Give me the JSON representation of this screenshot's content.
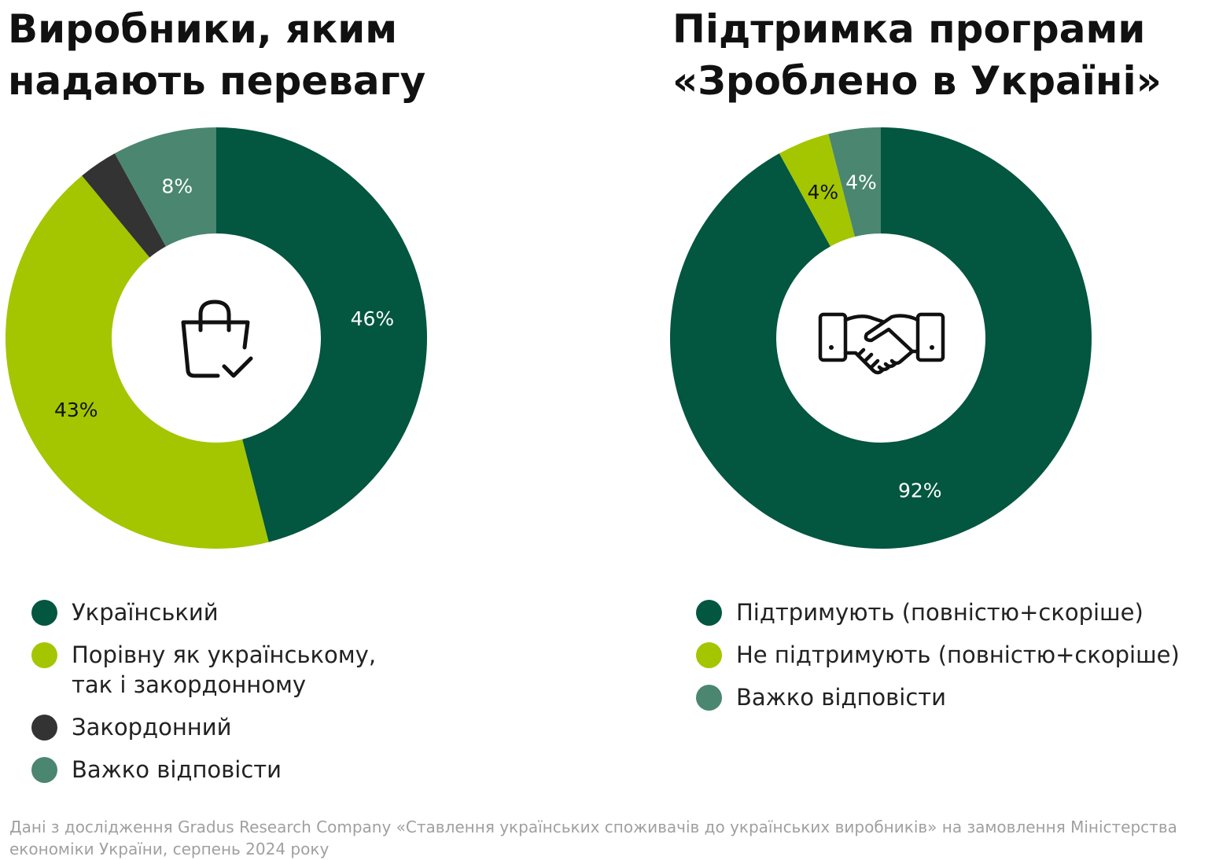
{
  "chart_data": [
    {
      "type": "pie",
      "subtype": "donut",
      "title": "Виробники, яким надають перевагу",
      "icon": "shopping-bag-check-icon",
      "categories": [
        "Український",
        "Порівну як українському, так і закордонному",
        "Закордонний",
        "Важко відповісти"
      ],
      "values": [
        46,
        43,
        3,
        8
      ],
      "labels": [
        "46%",
        "43%",
        null,
        "8%"
      ],
      "colors": [
        "#03563f",
        "#a3c600",
        "#333333",
        "#4a8670"
      ],
      "label_colors": [
        "#ffffff",
        "#111111",
        "#ffffff",
        "#ffffff"
      ],
      "legend_placement": "bottom"
    },
    {
      "type": "pie",
      "subtype": "donut",
      "title": "Підтримка програми «Зроблено в Україні»",
      "icon": "handshake-icon",
      "categories": [
        "Підтримують (повністю+скоріше)",
        "Не підтримують (повністю+скоріше)",
        "Важко відповісти"
      ],
      "values": [
        92,
        4,
        4
      ],
      "labels": [
        "92%",
        "4%",
        "4%"
      ],
      "colors": [
        "#03563f",
        "#a3c600",
        "#4a8670"
      ],
      "label_colors": [
        "#ffffff",
        "#111111",
        "#ffffff"
      ],
      "legend_placement": "bottom"
    }
  ],
  "footer": "Дані з дослідження Gradus Research Company «Ставлення українських споживачів до українських виробників» на замовлення Міністерства економіки України, серпень 2024 року"
}
